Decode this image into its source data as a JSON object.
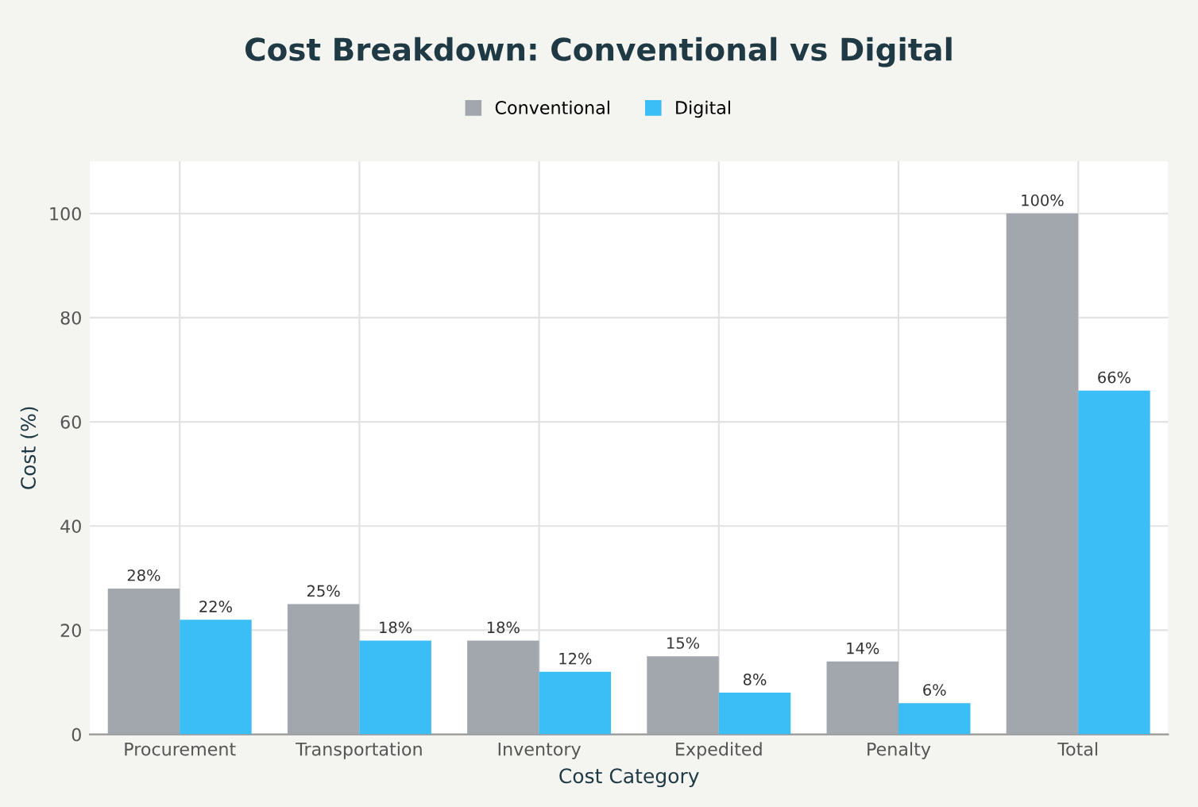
{
  "chart_data": {
    "type": "bar",
    "title": "Cost Breakdown: Conventional vs Digital",
    "xlabel": "Cost Category",
    "ylabel": "Cost (%)",
    "categories": [
      "Procurement",
      "Transportation",
      "Inventory",
      "Expedited",
      "Penalty",
      "Total"
    ],
    "series": [
      {
        "name": "Conventional",
        "color": "#a2a7ae",
        "values": [
          28,
          25,
          18,
          15,
          14,
          100
        ],
        "value_labels": [
          "28%",
          "25%",
          "18%",
          "15%",
          "14%",
          "100%"
        ]
      },
      {
        "name": "Digital",
        "color": "#3bbdf5",
        "values": [
          22,
          18,
          12,
          8,
          6,
          66
        ],
        "value_labels": [
          "22%",
          "18%",
          "12%",
          "8%",
          "6%",
          "66%"
        ]
      }
    ],
    "ylim": [
      0,
      110
    ],
    "yticks": [
      0,
      20,
      40,
      60,
      80,
      100
    ],
    "grid": true,
    "legend": "top"
  }
}
